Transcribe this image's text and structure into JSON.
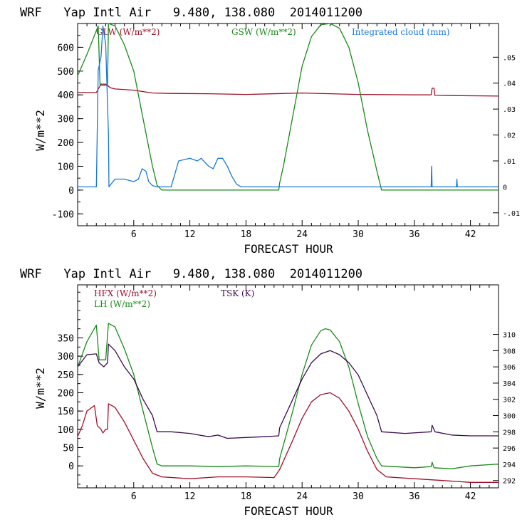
{
  "colors": {
    "red": "#a0102a",
    "green": "#1a8a1a",
    "blue": "#1878d8",
    "purple": "#3c0a50"
  },
  "chart_data": [
    {
      "type": "line",
      "title": "WRF   Yap Intl Air   9.480, 138.080  2014011200",
      "xlabel": "FORECAST HOUR",
      "ylabel": "W/m**2",
      "xlim": [
        0,
        45
      ],
      "ylim": [
        -150,
        700
      ],
      "y2lim": [
        -0.015,
        0.063
      ],
      "xticks": [
        "6",
        "12",
        "18",
        "24",
        "30",
        "36",
        "42"
      ],
      "yticks": [
        "-100",
        "0",
        "100",
        "200",
        "300",
        "400",
        "500",
        "600"
      ],
      "y2ticks": [
        "-.01",
        "0",
        ".01",
        ".02",
        ".03",
        ".04",
        ".05"
      ],
      "series": [
        {
          "name": "GLW (W/m**2)",
          "color": "red",
          "axis": "left",
          "points": [
            [
              0,
              410
            ],
            [
              2,
              410
            ],
            [
              2.5,
              445
            ],
            [
              3,
              445
            ],
            [
              3.5,
              430
            ],
            [
              4,
              425
            ],
            [
              6,
              420
            ],
            [
              8,
              408
            ],
            [
              10,
              406
            ],
            [
              14,
              405
            ],
            [
              18,
              402
            ],
            [
              24,
              408
            ],
            [
              30,
              402
            ],
            [
              36,
              400
            ],
            [
              37.8,
              400
            ],
            [
              37.9,
              428
            ],
            [
              38.1,
              428
            ],
            [
              38.2,
              398
            ],
            [
              45,
              395
            ]
          ]
        },
        {
          "name": "GSW (W/m**2)",
          "color": "green",
          "axis": "left",
          "points": [
            [
              0,
              480
            ],
            [
              1,
              570
            ],
            [
              2.2,
              690
            ],
            [
              2.4,
              440
            ],
            [
              3.2,
              440
            ],
            [
              3.3,
              700
            ],
            [
              4,
              690
            ],
            [
              5,
              610
            ],
            [
              6,
              500
            ],
            [
              7,
              300
            ],
            [
              8,
              100
            ],
            [
              8.5,
              20
            ],
            [
              9,
              0
            ],
            [
              21.5,
              0
            ],
            [
              21.6,
              30
            ],
            [
              22,
              100
            ],
            [
              23,
              310
            ],
            [
              24,
              520
            ],
            [
              25,
              645
            ],
            [
              26,
              695
            ],
            [
              27,
              700
            ],
            [
              28,
              680
            ],
            [
              29,
              600
            ],
            [
              30,
              450
            ],
            [
              31,
              250
            ],
            [
              32,
              80
            ],
            [
              32.5,
              0
            ],
            [
              45,
              0
            ]
          ]
        },
        {
          "name": "Integrated cloud (mm)",
          "color": "blue",
          "axis": "right",
          "points": [
            [
              0,
              0
            ],
            [
              2,
              0
            ],
            [
              2.2,
              0.045
            ],
            [
              2.5,
              0.05
            ],
            [
              2.7,
              0.062
            ],
            [
              3,
              0.055
            ],
            [
              3.3,
              0.02
            ],
            [
              3.35,
              0
            ],
            [
              4,
              0.003
            ],
            [
              5,
              0.003
            ],
            [
              6,
              0.002
            ],
            [
              6.5,
              0.003
            ],
            [
              6.9,
              0.007
            ],
            [
              7.3,
              0.006
            ],
            [
              7.6,
              0.002
            ],
            [
              8,
              0.0005
            ],
            [
              8.5,
              0
            ],
            [
              10,
              0
            ],
            [
              10.4,
              0.005
            ],
            [
              10.8,
              0.01
            ],
            [
              12,
              0.011
            ],
            [
              12.8,
              0.01
            ],
            [
              13.2,
              0.011
            ],
            [
              14,
              0.008
            ],
            [
              14.5,
              0.007
            ],
            [
              15,
              0.011
            ],
            [
              15.5,
              0.011
            ],
            [
              16,
              0.008
            ],
            [
              16.5,
              0.004
            ],
            [
              17,
              0.001
            ],
            [
              17.5,
              0
            ],
            [
              37.8,
              0
            ],
            [
              37.85,
              0.008
            ],
            [
              37.9,
              0
            ],
            [
              40.5,
              0
            ],
            [
              40.55,
              0.003
            ],
            [
              40.6,
              0
            ],
            [
              45,
              0
            ]
          ]
        }
      ]
    },
    {
      "type": "line",
      "title": "WRF   Yap Intl Air   9.480, 138.080  2014011200",
      "xlabel": "FORECAST HOUR",
      "ylabel": "W/m**2",
      "xlim": [
        0,
        45
      ],
      "ylim": [
        -60,
        495
      ],
      "y2lim": [
        291.1,
        316.1
      ],
      "xticks": [
        "6",
        "12",
        "18",
        "24",
        "30",
        "36",
        "42"
      ],
      "yticks": [
        "0",
        "50",
        "100",
        "150",
        "200",
        "250",
        "300",
        "350"
      ],
      "y2ticks": [
        "292",
        "294",
        "296",
        "298",
        "300",
        "302",
        "304",
        "306",
        "308",
        "310"
      ],
      "series": [
        {
          "name": "HFX (W/m**2)",
          "color": "red",
          "axis": "left",
          "points": [
            [
              0,
              80
            ],
            [
              0.5,
              110
            ],
            [
              1,
              150
            ],
            [
              1.8,
              165
            ],
            [
              2.1,
              110
            ],
            [
              2.5,
              100
            ],
            [
              2.7,
              90
            ],
            [
              3,
              100
            ],
            [
              3.2,
              100
            ],
            [
              3.3,
              170
            ],
            [
              4,
              160
            ],
            [
              5,
              120
            ],
            [
              6,
              70
            ],
            [
              7,
              20
            ],
            [
              8,
              -20
            ],
            [
              9,
              -30
            ],
            [
              12,
              -35
            ],
            [
              15,
              -30
            ],
            [
              18,
              -30
            ],
            [
              21,
              -32
            ],
            [
              21.6,
              -10
            ],
            [
              23,
              70
            ],
            [
              24,
              130
            ],
            [
              25,
              175
            ],
            [
              26,
              195
            ],
            [
              27,
              200
            ],
            [
              28,
              185
            ],
            [
              29,
              150
            ],
            [
              30,
              100
            ],
            [
              31,
              40
            ],
            [
              32,
              -10
            ],
            [
              33,
              -30
            ],
            [
              36,
              -35
            ],
            [
              39,
              -40
            ],
            [
              42,
              -45
            ],
            [
              45,
              -45
            ]
          ]
        },
        {
          "name": "LH  (W/m**2)",
          "color": "green",
          "axis": "left",
          "points": [
            [
              0,
              270
            ],
            [
              1,
              340
            ],
            [
              2,
              385
            ],
            [
              2.3,
              290
            ],
            [
              3,
              290
            ],
            [
              3.3,
              390
            ],
            [
              4,
              380
            ],
            [
              5,
              320
            ],
            [
              6,
              250
            ],
            [
              7,
              150
            ],
            [
              8,
              50
            ],
            [
              8.5,
              5
            ],
            [
              9,
              0
            ],
            [
              12,
              0
            ],
            [
              15,
              -2
            ],
            [
              18,
              0
            ],
            [
              21.5,
              -2
            ],
            [
              21.6,
              20
            ],
            [
              23,
              150
            ],
            [
              24,
              250
            ],
            [
              25,
              330
            ],
            [
              26,
              370
            ],
            [
              26.5,
              375
            ],
            [
              27,
              372
            ],
            [
              28,
              340
            ],
            [
              29,
              270
            ],
            [
              30,
              170
            ],
            [
              31,
              80
            ],
            [
              32,
              20
            ],
            [
              32.5,
              0
            ],
            [
              36,
              -5
            ],
            [
              37.8,
              -2
            ],
            [
              37.9,
              10
            ],
            [
              38.1,
              -5
            ],
            [
              40,
              -8
            ],
            [
              42,
              0
            ],
            [
              45,
              5
            ]
          ]
        },
        {
          "name": "TSK (K)",
          "color": "purple",
          "axis": "right",
          "points": [
            [
              0,
              306
            ],
            [
              1,
              307.5
            ],
            [
              2,
              307.6
            ],
            [
              2.3,
              306.5
            ],
            [
              2.8,
              306
            ],
            [
              3.2,
              306.5
            ],
            [
              3.3,
              308.8
            ],
            [
              4,
              308
            ],
            [
              5,
              306
            ],
            [
              6,
              304.5
            ],
            [
              7,
              302
            ],
            [
              8,
              300
            ],
            [
              8.5,
              298
            ],
            [
              10,
              298
            ],
            [
              12,
              297.8
            ],
            [
              14,
              297.4
            ],
            [
              15,
              297.6
            ],
            [
              16,
              297.2
            ],
            [
              18,
              297.3
            ],
            [
              20,
              297.4
            ],
            [
              21.5,
              297.5
            ],
            [
              21.6,
              298.5
            ],
            [
              23,
              302
            ],
            [
              24,
              304.5
            ],
            [
              25,
              306.5
            ],
            [
              26,
              307.6
            ],
            [
              27,
              308
            ],
            [
              28,
              307.5
            ],
            [
              29,
              306.5
            ],
            [
              30,
              305
            ],
            [
              31,
              302.5
            ],
            [
              32,
              300
            ],
            [
              32.5,
              298
            ],
            [
              35,
              297.8
            ],
            [
              37.8,
              298
            ],
            [
              37.9,
              298.8
            ],
            [
              38.2,
              298
            ],
            [
              40,
              297.6
            ],
            [
              42,
              297.5
            ],
            [
              45,
              297.5
            ]
          ]
        }
      ]
    }
  ]
}
